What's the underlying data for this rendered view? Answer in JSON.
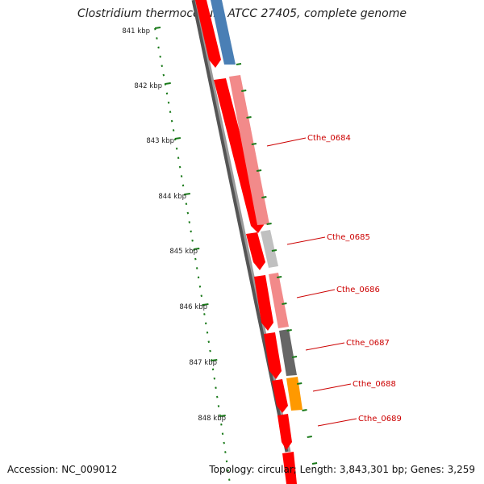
{
  "title": "Clostridium thermocellum ATCC 27405, complete genome",
  "footer": {
    "accession": "Accession: NC_009012",
    "stats": "Topology: circular; Length: 3,843,301 bp; Genes: 3,259"
  },
  "scale": {
    "color": "#1a7a1a",
    "labels": [
      "841 kbp",
      "842 kbp",
      "843 kbp",
      "844 kbp",
      "845 kbp",
      "846 kbp",
      "847 kbp",
      "848 kbp"
    ]
  },
  "colors": {
    "label_red": "#cc0000",
    "backbone": "#8a8a8a",
    "forward": "#ff0000",
    "blue": "#4a7fb5",
    "pink": "#f28a8a",
    "lightgray": "#c0c0c0",
    "darkgray": "#666666",
    "orange": "#ff9900"
  },
  "gene_labels": [
    "Cthe_0684",
    "Cthe_0685",
    "Cthe_0686",
    "Cthe_0687",
    "Cthe_0688",
    "Cthe_0689"
  ]
}
